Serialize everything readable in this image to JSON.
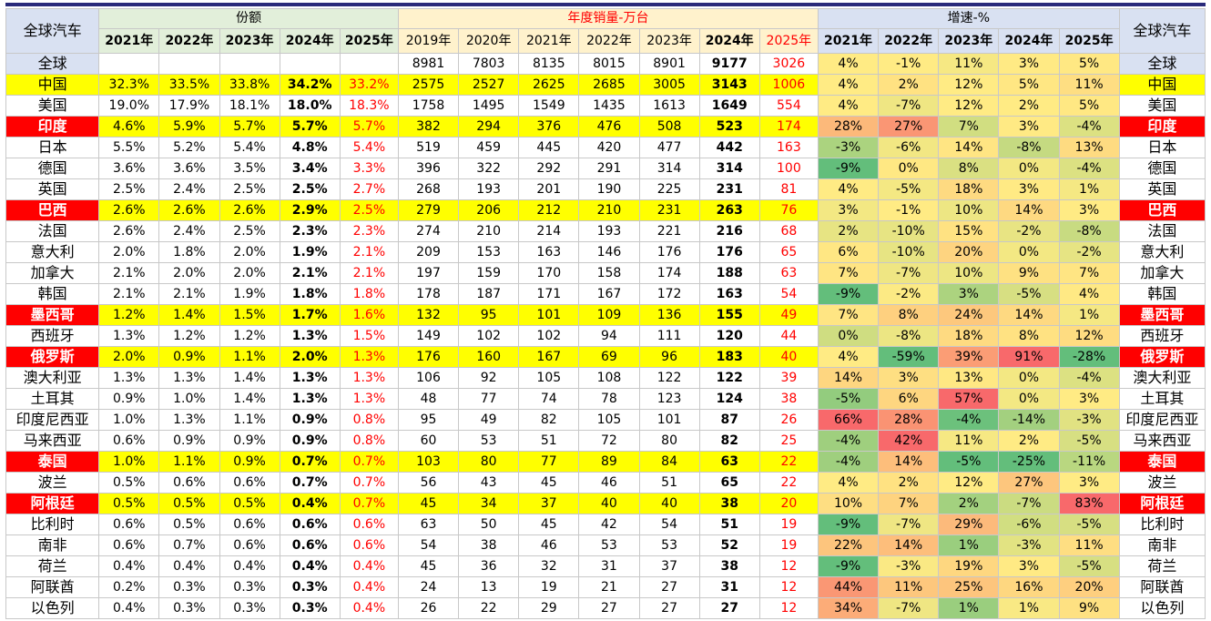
{
  "headers": {
    "left_title": "全球汽车",
    "share_group": "份额",
    "sales_group": "年度销量-万台",
    "growth_group": "增速-%",
    "right_title": "全球汽车",
    "share_years": [
      "2021年",
      "2022年",
      "2023年",
      "2024年",
      "2025年"
    ],
    "sales_years": [
      "2019年",
      "2020年",
      "2021年",
      "2022年",
      "2023年",
      "2024年",
      "2025年"
    ],
    "growth_years": [
      "2021年",
      "2022年",
      "2023年",
      "2024年",
      "2025年"
    ]
  },
  "rows": [
    {
      "name": "全球",
      "highlight": false,
      "share": [
        "",
        "",
        "",
        "",
        ""
      ],
      "sales": [
        "8981",
        "7803",
        "8135",
        "8015",
        "8901",
        "9177",
        "3026"
      ],
      "growth": [
        "4%",
        "-1%",
        "11%",
        "3%",
        "5%"
      ]
    },
    {
      "name": "中国",
      "highlight": false,
      "yellow": true,
      "share": [
        "32.3%",
        "33.5%",
        "33.8%",
        "34.2%",
        "33.2%"
      ],
      "sales": [
        "2575",
        "2527",
        "2625",
        "2685",
        "3005",
        "3143",
        "1006"
      ],
      "growth": [
        "4%",
        "2%",
        "12%",
        "5%",
        "11%"
      ]
    },
    {
      "name": "美国",
      "highlight": false,
      "share": [
        "19.0%",
        "17.9%",
        "18.1%",
        "18.0%",
        "18.3%"
      ],
      "sales": [
        "1758",
        "1495",
        "1549",
        "1435",
        "1613",
        "1649",
        "554"
      ],
      "growth": [
        "4%",
        "-7%",
        "12%",
        "2%",
        "5%"
      ]
    },
    {
      "name": "印度",
      "highlight": true,
      "share": [
        "4.6%",
        "5.9%",
        "5.7%",
        "5.7%",
        "5.7%"
      ],
      "sales": [
        "382",
        "294",
        "376",
        "476",
        "508",
        "523",
        "174"
      ],
      "growth": [
        "28%",
        "27%",
        "7%",
        "3%",
        "-4%"
      ]
    },
    {
      "name": "日本",
      "highlight": false,
      "share": [
        "5.5%",
        "5.2%",
        "5.4%",
        "4.8%",
        "5.4%"
      ],
      "sales": [
        "519",
        "459",
        "445",
        "420",
        "477",
        "442",
        "163"
      ],
      "growth": [
        "-3%",
        "-6%",
        "14%",
        "-8%",
        "13%"
      ]
    },
    {
      "name": "德国",
      "highlight": false,
      "share": [
        "3.6%",
        "3.6%",
        "3.5%",
        "3.4%",
        "3.3%"
      ],
      "sales": [
        "396",
        "322",
        "292",
        "291",
        "314",
        "314",
        "100"
      ],
      "growth": [
        "-9%",
        "0%",
        "8%",
        "0%",
        "-4%"
      ]
    },
    {
      "name": "英国",
      "highlight": false,
      "share": [
        "2.5%",
        "2.4%",
        "2.5%",
        "2.5%",
        "2.7%"
      ],
      "sales": [
        "268",
        "193",
        "201",
        "190",
        "225",
        "231",
        "81"
      ],
      "growth": [
        "4%",
        "-5%",
        "18%",
        "3%",
        "1%"
      ]
    },
    {
      "name": "巴西",
      "highlight": true,
      "share": [
        "2.6%",
        "2.6%",
        "2.6%",
        "2.9%",
        "2.5%"
      ],
      "sales": [
        "279",
        "206",
        "212",
        "210",
        "231",
        "263",
        "76"
      ],
      "growth": [
        "3%",
        "-1%",
        "10%",
        "14%",
        "3%"
      ]
    },
    {
      "name": "法国",
      "highlight": false,
      "share": [
        "2.6%",
        "2.4%",
        "2.5%",
        "2.3%",
        "2.3%"
      ],
      "sales": [
        "274",
        "210",
        "214",
        "193",
        "221",
        "216",
        "68"
      ],
      "growth": [
        "2%",
        "-10%",
        "15%",
        "-2%",
        "-8%"
      ]
    },
    {
      "name": "意大利",
      "highlight": false,
      "share": [
        "2.0%",
        "1.8%",
        "2.0%",
        "1.9%",
        "2.1%"
      ],
      "sales": [
        "209",
        "153",
        "163",
        "146",
        "176",
        "176",
        "65"
      ],
      "growth": [
        "6%",
        "-10%",
        "20%",
        "0%",
        "-2%"
      ]
    },
    {
      "name": "加拿大",
      "highlight": false,
      "share": [
        "2.1%",
        "2.0%",
        "2.0%",
        "2.1%",
        "2.1%"
      ],
      "sales": [
        "197",
        "159",
        "170",
        "158",
        "174",
        "188",
        "63"
      ],
      "growth": [
        "7%",
        "-7%",
        "10%",
        "9%",
        "7%"
      ]
    },
    {
      "name": "韩国",
      "highlight": false,
      "share": [
        "2.1%",
        "2.1%",
        "1.9%",
        "1.8%",
        "1.8%"
      ],
      "sales": [
        "178",
        "187",
        "171",
        "167",
        "172",
        "163",
        "54"
      ],
      "growth": [
        "-9%",
        "-2%",
        "3%",
        "-5%",
        "4%"
      ]
    },
    {
      "name": "墨西哥",
      "highlight": true,
      "share": [
        "1.2%",
        "1.4%",
        "1.5%",
        "1.7%",
        "1.6%"
      ],
      "sales": [
        "132",
        "95",
        "101",
        "109",
        "136",
        "155",
        "49"
      ],
      "growth": [
        "7%",
        "8%",
        "24%",
        "14%",
        "1%"
      ]
    },
    {
      "name": "西班牙",
      "highlight": false,
      "share": [
        "1.3%",
        "1.2%",
        "1.2%",
        "1.3%",
        "1.5%"
      ],
      "sales": [
        "149",
        "102",
        "102",
        "94",
        "111",
        "120",
        "44"
      ],
      "growth": [
        "0%",
        "-8%",
        "18%",
        "8%",
        "12%"
      ]
    },
    {
      "name": "俄罗斯",
      "highlight": true,
      "share": [
        "2.0%",
        "0.9%",
        "1.1%",
        "2.0%",
        "1.3%"
      ],
      "sales": [
        "176",
        "160",
        "167",
        "69",
        "96",
        "183",
        "40"
      ],
      "growth": [
        "4%",
        "-59%",
        "39%",
        "91%",
        "-28%"
      ]
    },
    {
      "name": "澳大利亚",
      "highlight": false,
      "share": [
        "1.3%",
        "1.3%",
        "1.4%",
        "1.3%",
        "1.3%"
      ],
      "sales": [
        "106",
        "92",
        "105",
        "108",
        "122",
        "122",
        "39"
      ],
      "growth": [
        "14%",
        "3%",
        "13%",
        "0%",
        "-4%"
      ]
    },
    {
      "name": "土耳其",
      "highlight": false,
      "share": [
        "0.9%",
        "1.0%",
        "1.4%",
        "1.3%",
        "1.3%"
      ],
      "sales": [
        "48",
        "77",
        "74",
        "78",
        "123",
        "124",
        "38"
      ],
      "growth": [
        "-5%",
        "6%",
        "57%",
        "0%",
        "3%"
      ]
    },
    {
      "name": "印度尼西亚",
      "highlight": false,
      "share": [
        "1.0%",
        "1.3%",
        "1.1%",
        "0.9%",
        "0.8%"
      ],
      "sales": [
        "95",
        "49",
        "82",
        "105",
        "101",
        "87",
        "26"
      ],
      "growth": [
        "66%",
        "28%",
        "-4%",
        "-14%",
        "-3%"
      ]
    },
    {
      "name": "马来西亚",
      "highlight": false,
      "share": [
        "0.6%",
        "0.9%",
        "0.9%",
        "0.9%",
        "0.8%"
      ],
      "sales": [
        "60",
        "53",
        "51",
        "72",
        "80",
        "82",
        "25"
      ],
      "growth": [
        "-4%",
        "42%",
        "11%",
        "2%",
        "-5%"
      ]
    },
    {
      "name": "泰国",
      "highlight": true,
      "share": [
        "1.0%",
        "1.1%",
        "0.9%",
        "0.7%",
        "0.7%"
      ],
      "sales": [
        "103",
        "80",
        "77",
        "89",
        "84",
        "63",
        "22"
      ],
      "growth": [
        "-4%",
        "14%",
        "-5%",
        "-25%",
        "-11%"
      ]
    },
    {
      "name": "波兰",
      "highlight": false,
      "share": [
        "0.5%",
        "0.6%",
        "0.6%",
        "0.7%",
        "0.7%"
      ],
      "sales": [
        "56",
        "43",
        "45",
        "46",
        "51",
        "65",
        "22"
      ],
      "growth": [
        "4%",
        "2%",
        "12%",
        "27%",
        "3%"
      ]
    },
    {
      "name": "阿根廷",
      "highlight": true,
      "share": [
        "0.5%",
        "0.5%",
        "0.5%",
        "0.4%",
        "0.7%"
      ],
      "sales": [
        "45",
        "34",
        "37",
        "40",
        "40",
        "38",
        "20"
      ],
      "growth": [
        "10%",
        "7%",
        "2%",
        "-7%",
        "83%"
      ]
    },
    {
      "name": "比利时",
      "highlight": false,
      "share": [
        "0.6%",
        "0.5%",
        "0.6%",
        "0.6%",
        "0.6%"
      ],
      "sales": [
        "63",
        "50",
        "45",
        "42",
        "54",
        "51",
        "19"
      ],
      "growth": [
        "-9%",
        "-7%",
        "29%",
        "-6%",
        "-5%"
      ]
    },
    {
      "name": "南非",
      "highlight": false,
      "share": [
        "0.6%",
        "0.7%",
        "0.6%",
        "0.6%",
        "0.6%"
      ],
      "sales": [
        "54",
        "38",
        "46",
        "53",
        "53",
        "52",
        "19"
      ],
      "growth": [
        "22%",
        "14%",
        "1%",
        "-3%",
        "11%"
      ]
    },
    {
      "name": "荷兰",
      "highlight": false,
      "share": [
        "0.4%",
        "0.4%",
        "0.4%",
        "0.4%",
        "0.4%"
      ],
      "sales": [
        "45",
        "36",
        "32",
        "31",
        "37",
        "38",
        "12"
      ],
      "growth": [
        "-9%",
        "-3%",
        "19%",
        "3%",
        "-5%"
      ]
    },
    {
      "name": "阿联酋",
      "highlight": false,
      "share": [
        "0.2%",
        "0.3%",
        "0.3%",
        "0.3%",
        "0.4%"
      ],
      "sales": [
        "24",
        "13",
        "19",
        "21",
        "27",
        "31",
        "12"
      ],
      "growth": [
        "44%",
        "11%",
        "25%",
        "16%",
        "20%"
      ]
    },
    {
      "name": "以色列",
      "highlight": false,
      "share": [
        "0.4%",
        "0.3%",
        "0.3%",
        "0.3%",
        "0.4%"
      ],
      "sales": [
        "26",
        "22",
        "29",
        "27",
        "27",
        "27",
        "12"
      ],
      "growth": [
        "34%",
        "-7%",
        "1%",
        "1%",
        "9%"
      ]
    }
  ],
  "colors": {
    "highlight_fill": "#ffff00",
    "highlight_name": "#ff0000",
    "accent_red": "#ff0000",
    "scale_low": "#63be7b",
    "scale_mid": "#ffeb84",
    "scale_high": "#f8696b"
  }
}
